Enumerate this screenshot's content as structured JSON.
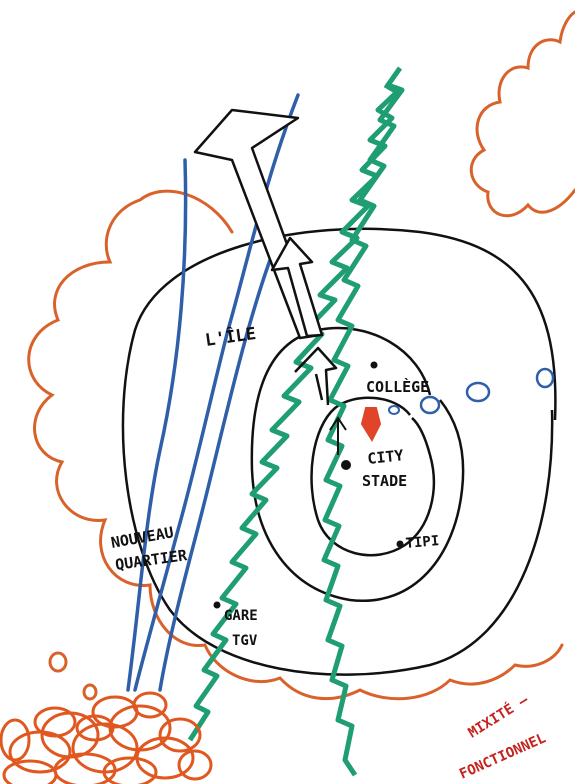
{
  "colors": {
    "ink": "#111111",
    "cloud": "#d9622b",
    "river": "#2f5fa8",
    "greenway": "#1e9e72",
    "pin": "#e0452a",
    "scribble": "#e0571f",
    "mixite": "#c4231e"
  },
  "labels": {
    "lile": "L'ÎLE",
    "college": "COLLÈGE",
    "city_stade_1": "CITY",
    "city_stade_2": "STADE",
    "tipi": "TIPI",
    "nouveau_1": "NOUVEAU",
    "nouveau_2": "QUARTIER",
    "gare_1": "GARE",
    "gare_2": "TGV",
    "mixite_1": "MIXITÉ —",
    "mixite_2": "FONCTIONNEL"
  },
  "icons": [
    "up-arrow-icon",
    "small-arrow-icon",
    "map-pin-icon",
    "dot-icon"
  ]
}
